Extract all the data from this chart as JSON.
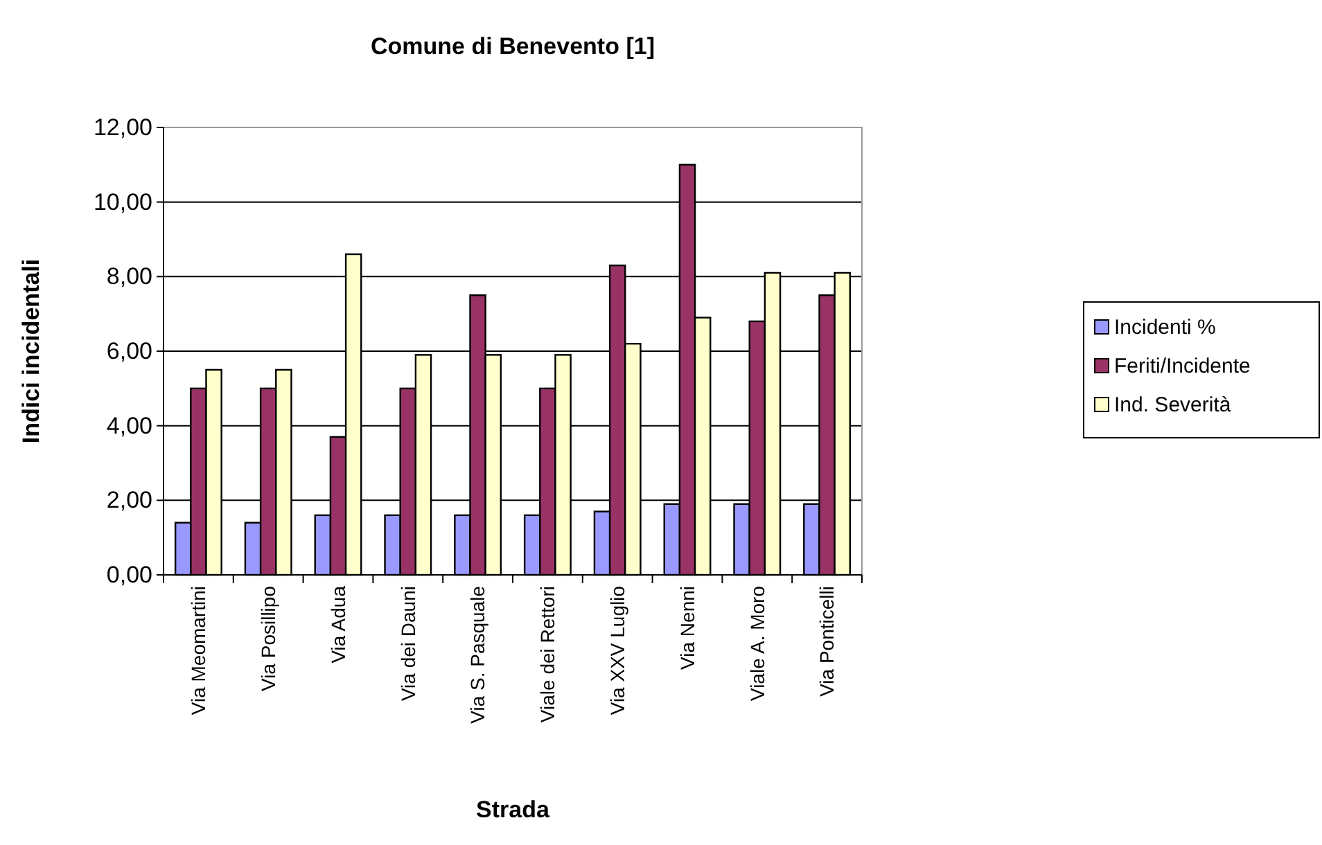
{
  "chart_data": {
    "type": "bar",
    "title": "Comune di Benevento [1]",
    "xlabel": "Strada",
    "ylabel": "Indici incidentali",
    "categories": [
      "Via Meomartini",
      "Via Posillipo",
      "Via Adua",
      "Via dei Dauni",
      "Via S. Pasquale",
      "Viale dei Rettori",
      "Via XXV Luglio",
      "Via Nenni",
      "Viale A. Moro",
      "Via Ponticelli"
    ],
    "series": [
      {
        "name": "Incidenti %",
        "color": "#9999ff",
        "values": [
          1.4,
          1.4,
          1.6,
          1.6,
          1.6,
          1.6,
          1.7,
          1.9,
          1.9,
          1.9
        ]
      },
      {
        "name": "Feriti/Incidente",
        "color": "#993366",
        "values": [
          5.0,
          5.0,
          3.7,
          5.0,
          7.5,
          5.0,
          8.3,
          11.0,
          6.8,
          7.5
        ]
      },
      {
        "name": "Ind. Severità",
        "color": "#ffffcc",
        "values": [
          5.5,
          5.5,
          8.6,
          5.9,
          5.9,
          5.9,
          6.2,
          6.9,
          8.1,
          8.1
        ]
      }
    ],
    "ylim": [
      0,
      12
    ],
    "yticks": [
      {
        "value": 0,
        "label": "0,00"
      },
      {
        "value": 2,
        "label": "2,00"
      },
      {
        "value": 4,
        "label": "4,00"
      },
      {
        "value": 6,
        "label": "6,00"
      },
      {
        "value": 8,
        "label": "8,00"
      },
      {
        "value": 10,
        "label": "10,00"
      },
      {
        "value": 12,
        "label": "12,00"
      }
    ],
    "grid": "y",
    "legend": "right"
  }
}
